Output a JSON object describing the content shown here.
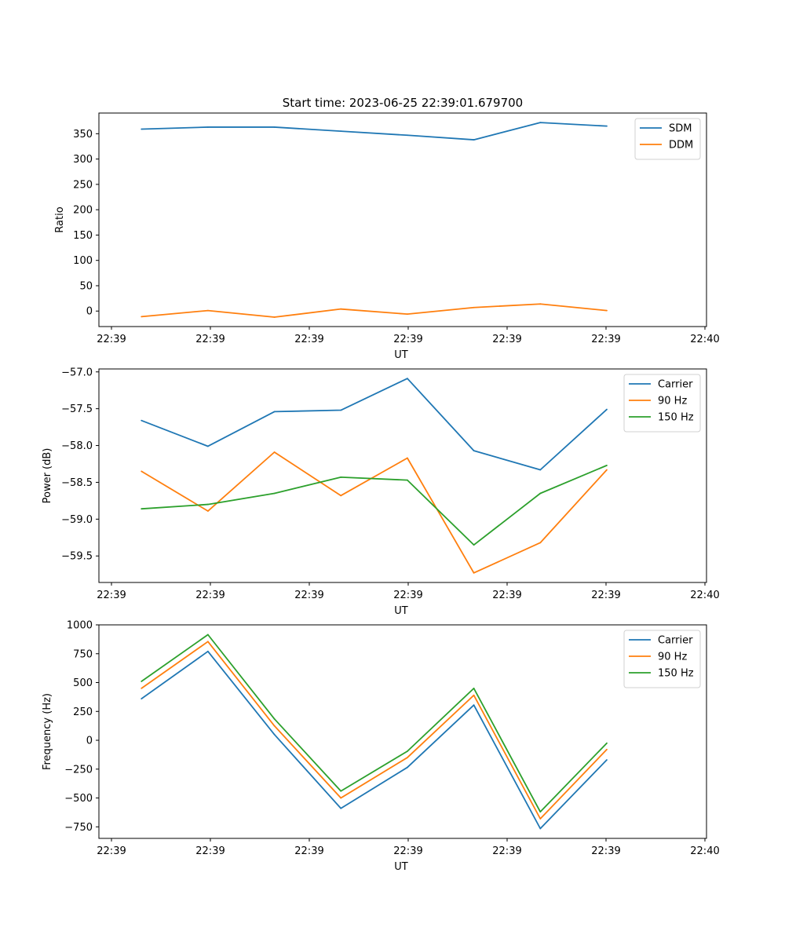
{
  "figure": {
    "title": "Start time: 2023-06-25 22:39:01.679700"
  },
  "chart_data": [
    {
      "type": "line",
      "xlabel": "UT",
      "ylabel": "Ratio",
      "x_tick_labels": [
        "22:39",
        "22:39",
        "22:39",
        "22:39",
        "22:39",
        "22:39",
        "22:40"
      ],
      "y_ticks": [
        0,
        50,
        100,
        150,
        200,
        250,
        300,
        350
      ],
      "ylim": [
        -30.6,
        390.8
      ],
      "xlim": [
        -0.64,
        8.5
      ],
      "grid": false,
      "legend_position": "top-right",
      "x": [
        0,
        1,
        2,
        3,
        4,
        5,
        6,
        7
      ],
      "series": [
        {
          "name": "SDM",
          "color": "#1f77b4",
          "values": [
            359,
            363,
            363,
            355,
            347,
            338,
            372,
            365
          ]
        },
        {
          "name": "DDM",
          "color": "#ff7f0e",
          "values": [
            -11,
            1,
            -12,
            4,
            -6,
            7,
            14,
            1
          ]
        }
      ]
    },
    {
      "type": "line",
      "xlabel": "UT",
      "ylabel": "Power (dB)",
      "x_tick_labels": [
        "22:39",
        "22:39",
        "22:39",
        "22:39",
        "22:39",
        "22:39",
        "22:40"
      ],
      "y_ticks": [
        -59.5,
        -59.0,
        -58.5,
        -58.0,
        -57.5,
        -57.0
      ],
      "y_tick_labels": [
        "−59.5",
        "−59.0",
        "−58.5",
        "−58.0",
        "−57.5",
        "−57.0"
      ],
      "ylim": [
        -59.86,
        -56.96
      ],
      "xlim": [
        -0.64,
        8.5
      ],
      "grid": false,
      "legend_position": "top-right",
      "x": [
        0,
        1,
        2,
        3,
        4,
        5,
        6,
        7
      ],
      "series": [
        {
          "name": "Carrier",
          "color": "#1f77b4",
          "values": [
            -57.66,
            -58.01,
            -57.54,
            -57.52,
            -57.09,
            -58.07,
            -58.33,
            -57.51
          ]
        },
        {
          "name": "90 Hz",
          "color": "#ff7f0e",
          "values": [
            -58.35,
            -58.89,
            -58.09,
            -58.68,
            -58.17,
            -59.73,
            -59.32,
            -58.33
          ]
        },
        {
          "name": "150 Hz",
          "color": "#2ca02c",
          "values": [
            -58.86,
            -58.8,
            -58.65,
            -58.43,
            -58.47,
            -59.35,
            -58.65,
            -58.27
          ]
        }
      ]
    },
    {
      "type": "line",
      "xlabel": "UT",
      "ylabel": "Frequency (Hz)",
      "x_tick_labels": [
        "22:39",
        "22:39",
        "22:39",
        "22:39",
        "22:39",
        "22:39",
        "22:40"
      ],
      "y_ticks": [
        -750,
        -500,
        -250,
        0,
        250,
        500,
        750,
        1000
      ],
      "y_tick_labels": [
        "−750",
        "−500",
        "−250",
        "0",
        "250",
        "500",
        "750",
        "1000"
      ],
      "ylim": [
        -850,
        1000
      ],
      "xlim": [
        -0.64,
        8.5
      ],
      "grid": false,
      "legend_position": "top-right",
      "x": [
        0,
        1,
        2,
        3,
        4,
        5,
        6,
        7
      ],
      "series": [
        {
          "name": "Carrier",
          "color": "#1f77b4",
          "values": [
            360,
            770,
            50,
            -590,
            -235,
            305,
            -765,
            -170
          ]
        },
        {
          "name": "90 Hz",
          "color": "#ff7f0e",
          "values": [
            450,
            855,
            125,
            -500,
            -150,
            390,
            -680,
            -80
          ]
        },
        {
          "name": "150 Hz",
          "color": "#2ca02c",
          "values": [
            510,
            915,
            185,
            -440,
            -95,
            450,
            -620,
            -25
          ]
        }
      ]
    }
  ]
}
